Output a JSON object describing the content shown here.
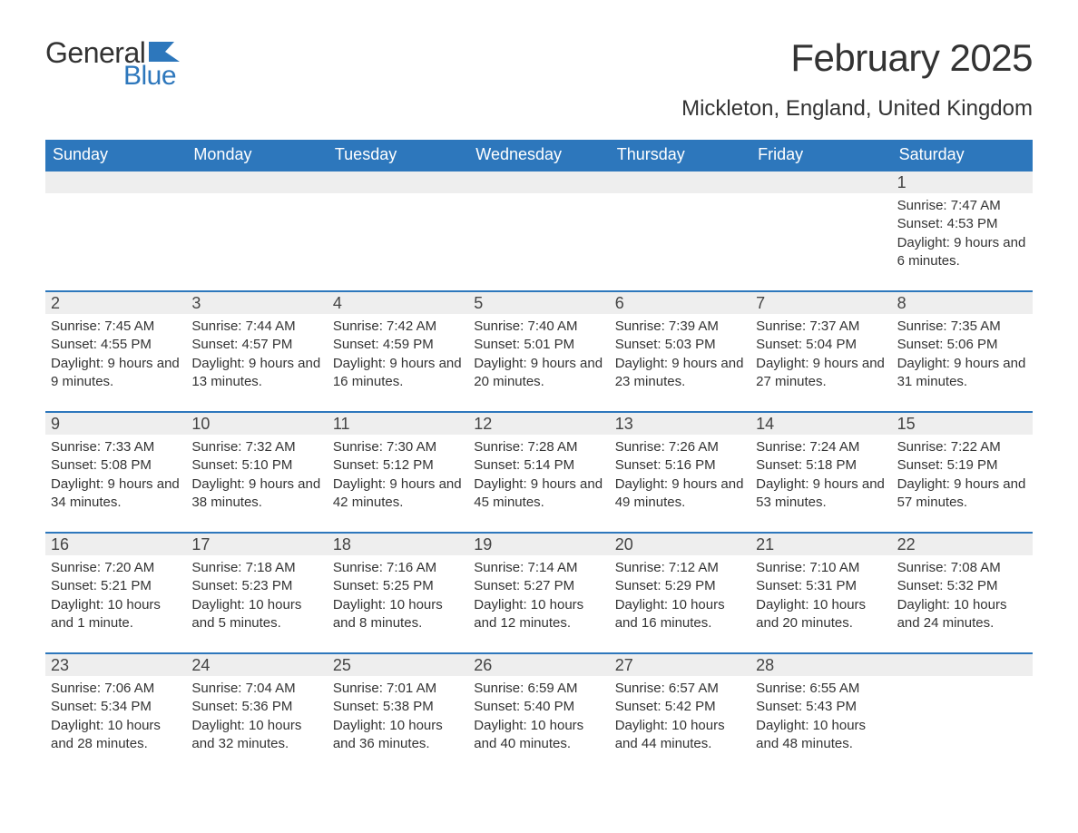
{
  "logo": {
    "general": "General",
    "blue": "Blue"
  },
  "title": "February 2025",
  "location": "Mickleton, England, United Kingdom",
  "colors": {
    "brand_blue": "#2d77bc",
    "header_text": "#ffffff",
    "day_strip_bg": "#eeeeee",
    "body_text": "#333333",
    "page_bg": "#ffffff"
  },
  "weekdays": [
    "Sunday",
    "Monday",
    "Tuesday",
    "Wednesday",
    "Thursday",
    "Friday",
    "Saturday"
  ],
  "weeks": [
    [
      null,
      null,
      null,
      null,
      null,
      null,
      {
        "n": "1",
        "sr": "Sunrise: 7:47 AM",
        "ss": "Sunset: 4:53 PM",
        "dl": "Daylight: 9 hours and 6 minutes."
      }
    ],
    [
      {
        "n": "2",
        "sr": "Sunrise: 7:45 AM",
        "ss": "Sunset: 4:55 PM",
        "dl": "Daylight: 9 hours and 9 minutes."
      },
      {
        "n": "3",
        "sr": "Sunrise: 7:44 AM",
        "ss": "Sunset: 4:57 PM",
        "dl": "Daylight: 9 hours and 13 minutes."
      },
      {
        "n": "4",
        "sr": "Sunrise: 7:42 AM",
        "ss": "Sunset: 4:59 PM",
        "dl": "Daylight: 9 hours and 16 minutes."
      },
      {
        "n": "5",
        "sr": "Sunrise: 7:40 AM",
        "ss": "Sunset: 5:01 PM",
        "dl": "Daylight: 9 hours and 20 minutes."
      },
      {
        "n": "6",
        "sr": "Sunrise: 7:39 AM",
        "ss": "Sunset: 5:03 PM",
        "dl": "Daylight: 9 hours and 23 minutes."
      },
      {
        "n": "7",
        "sr": "Sunrise: 7:37 AM",
        "ss": "Sunset: 5:04 PM",
        "dl": "Daylight: 9 hours and 27 minutes."
      },
      {
        "n": "8",
        "sr": "Sunrise: 7:35 AM",
        "ss": "Sunset: 5:06 PM",
        "dl": "Daylight: 9 hours and 31 minutes."
      }
    ],
    [
      {
        "n": "9",
        "sr": "Sunrise: 7:33 AM",
        "ss": "Sunset: 5:08 PM",
        "dl": "Daylight: 9 hours and 34 minutes."
      },
      {
        "n": "10",
        "sr": "Sunrise: 7:32 AM",
        "ss": "Sunset: 5:10 PM",
        "dl": "Daylight: 9 hours and 38 minutes."
      },
      {
        "n": "11",
        "sr": "Sunrise: 7:30 AM",
        "ss": "Sunset: 5:12 PM",
        "dl": "Daylight: 9 hours and 42 minutes."
      },
      {
        "n": "12",
        "sr": "Sunrise: 7:28 AM",
        "ss": "Sunset: 5:14 PM",
        "dl": "Daylight: 9 hours and 45 minutes."
      },
      {
        "n": "13",
        "sr": "Sunrise: 7:26 AM",
        "ss": "Sunset: 5:16 PM",
        "dl": "Daylight: 9 hours and 49 minutes."
      },
      {
        "n": "14",
        "sr": "Sunrise: 7:24 AM",
        "ss": "Sunset: 5:18 PM",
        "dl": "Daylight: 9 hours and 53 minutes."
      },
      {
        "n": "15",
        "sr": "Sunrise: 7:22 AM",
        "ss": "Sunset: 5:19 PM",
        "dl": "Daylight: 9 hours and 57 minutes."
      }
    ],
    [
      {
        "n": "16",
        "sr": "Sunrise: 7:20 AM",
        "ss": "Sunset: 5:21 PM",
        "dl": "Daylight: 10 hours and 1 minute."
      },
      {
        "n": "17",
        "sr": "Sunrise: 7:18 AM",
        "ss": "Sunset: 5:23 PM",
        "dl": "Daylight: 10 hours and 5 minutes."
      },
      {
        "n": "18",
        "sr": "Sunrise: 7:16 AM",
        "ss": "Sunset: 5:25 PM",
        "dl": "Daylight: 10 hours and 8 minutes."
      },
      {
        "n": "19",
        "sr": "Sunrise: 7:14 AM",
        "ss": "Sunset: 5:27 PM",
        "dl": "Daylight: 10 hours and 12 minutes."
      },
      {
        "n": "20",
        "sr": "Sunrise: 7:12 AM",
        "ss": "Sunset: 5:29 PM",
        "dl": "Daylight: 10 hours and 16 minutes."
      },
      {
        "n": "21",
        "sr": "Sunrise: 7:10 AM",
        "ss": "Sunset: 5:31 PM",
        "dl": "Daylight: 10 hours and 20 minutes."
      },
      {
        "n": "22",
        "sr": "Sunrise: 7:08 AM",
        "ss": "Sunset: 5:32 PM",
        "dl": "Daylight: 10 hours and 24 minutes."
      }
    ],
    [
      {
        "n": "23",
        "sr": "Sunrise: 7:06 AM",
        "ss": "Sunset: 5:34 PM",
        "dl": "Daylight: 10 hours and 28 minutes."
      },
      {
        "n": "24",
        "sr": "Sunrise: 7:04 AM",
        "ss": "Sunset: 5:36 PM",
        "dl": "Daylight: 10 hours and 32 minutes."
      },
      {
        "n": "25",
        "sr": "Sunrise: 7:01 AM",
        "ss": "Sunset: 5:38 PM",
        "dl": "Daylight: 10 hours and 36 minutes."
      },
      {
        "n": "26",
        "sr": "Sunrise: 6:59 AM",
        "ss": "Sunset: 5:40 PM",
        "dl": "Daylight: 10 hours and 40 minutes."
      },
      {
        "n": "27",
        "sr": "Sunrise: 6:57 AM",
        "ss": "Sunset: 5:42 PM",
        "dl": "Daylight: 10 hours and 44 minutes."
      },
      {
        "n": "28",
        "sr": "Sunrise: 6:55 AM",
        "ss": "Sunset: 5:43 PM",
        "dl": "Daylight: 10 hours and 48 minutes."
      },
      null
    ]
  ]
}
